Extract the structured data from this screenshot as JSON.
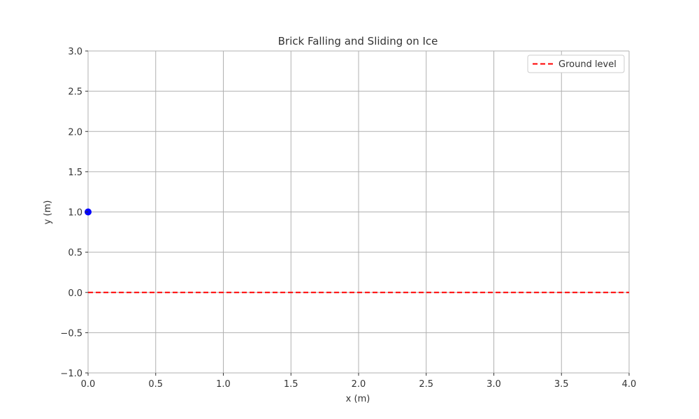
{
  "chart_data": {
    "type": "scatter",
    "title": "Brick Falling and Sliding on Ice",
    "xlabel": "x (m)",
    "ylabel": "y (m)",
    "xlim": [
      0.0,
      4.0
    ],
    "ylim": [
      -1.0,
      3.0
    ],
    "xticks": [
      0.0,
      0.5,
      1.0,
      1.5,
      2.0,
      2.5,
      3.0,
      3.5,
      4.0
    ],
    "yticks": [
      -1.0,
      -0.5,
      0.0,
      0.5,
      1.0,
      1.5,
      2.0,
      2.5,
      3.0
    ],
    "xtick_labels": [
      "0.0",
      "0.5",
      "1.0",
      "1.5",
      "2.0",
      "2.5",
      "3.0",
      "3.5",
      "4.0"
    ],
    "ytick_labels": [
      "−1.0",
      "−0.5",
      "0.0",
      "0.5",
      "1.0",
      "1.5",
      "2.0",
      "2.5",
      "3.0"
    ],
    "grid": true,
    "legend_position": "top-right",
    "series": [
      {
        "kind": "point",
        "color": "#0000ff",
        "x": [
          0.0
        ],
        "y": [
          1.0
        ]
      },
      {
        "kind": "hline",
        "name": "Ground level",
        "color": "#ff0000",
        "style": "dashed",
        "y": 0.0
      }
    ]
  }
}
